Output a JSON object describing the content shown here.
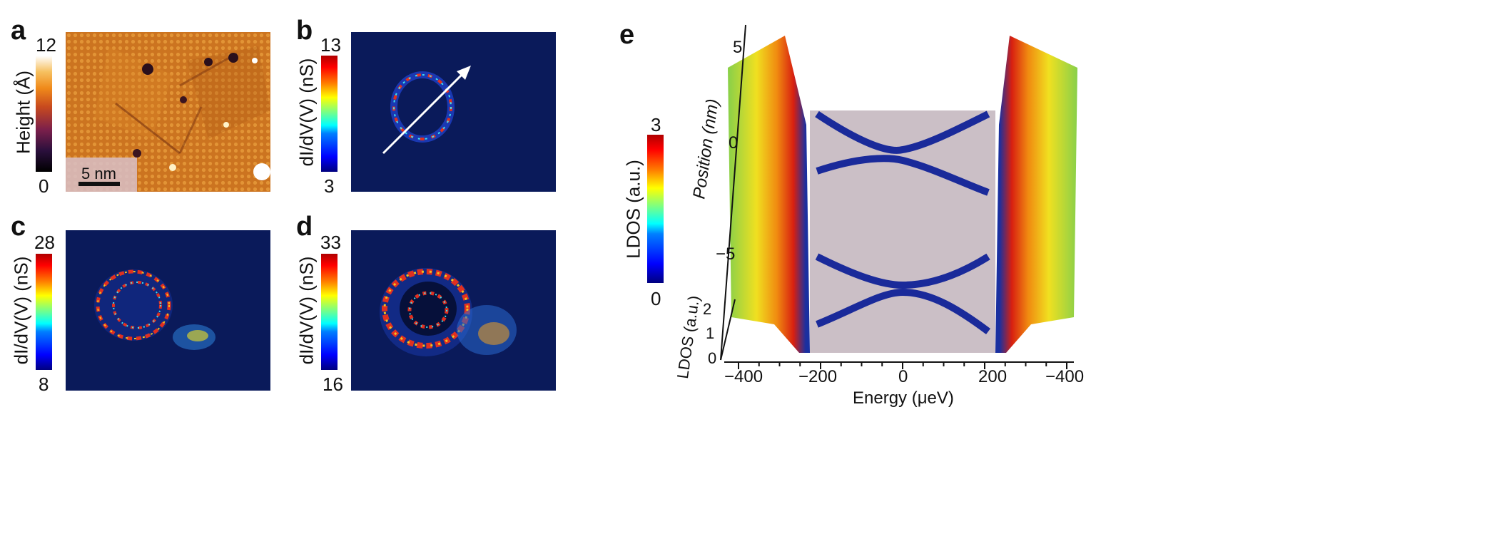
{
  "panels": {
    "a": {
      "letter": "a",
      "colorbar_label": "Height (Å)",
      "colorbar_max": "12",
      "colorbar_min": "0",
      "scalebar_label": "5 nm"
    },
    "b": {
      "letter": "b",
      "colorbar_label": "dI/dV(V) (nS)",
      "colorbar_max": "13",
      "colorbar_min": "3"
    },
    "c": {
      "letter": "c",
      "colorbar_label": "dI/dV(V) (nS)",
      "colorbar_max": "28",
      "colorbar_min": "8"
    },
    "d": {
      "letter": "d",
      "colorbar_label": "dI/dV(V) (nS)",
      "colorbar_max": "33",
      "colorbar_min": "16"
    },
    "e": {
      "letter": "e",
      "colorbar_label": "LDOS (a.u.)",
      "colorbar_max": "3",
      "colorbar_min": "0"
    }
  },
  "chart_data": {
    "type": "surface3d",
    "xlabel": "Energy (μeV)",
    "ylabel": "Position (nm)",
    "zlabel": "LDOS (a.u.)",
    "x_ticks": [
      "−400",
      "−200",
      "0",
      "200",
      "−400"
    ],
    "y_ticks": [
      "5",
      "0",
      "−5"
    ],
    "z_ticks": [
      "2",
      "1",
      "0"
    ],
    "coherence_peak_energies_ueV": [
      -270,
      270
    ],
    "gap_edge_energies_ueV": [
      -200,
      200
    ],
    "zlim": [
      0,
      3
    ],
    "colormap": "jet"
  }
}
